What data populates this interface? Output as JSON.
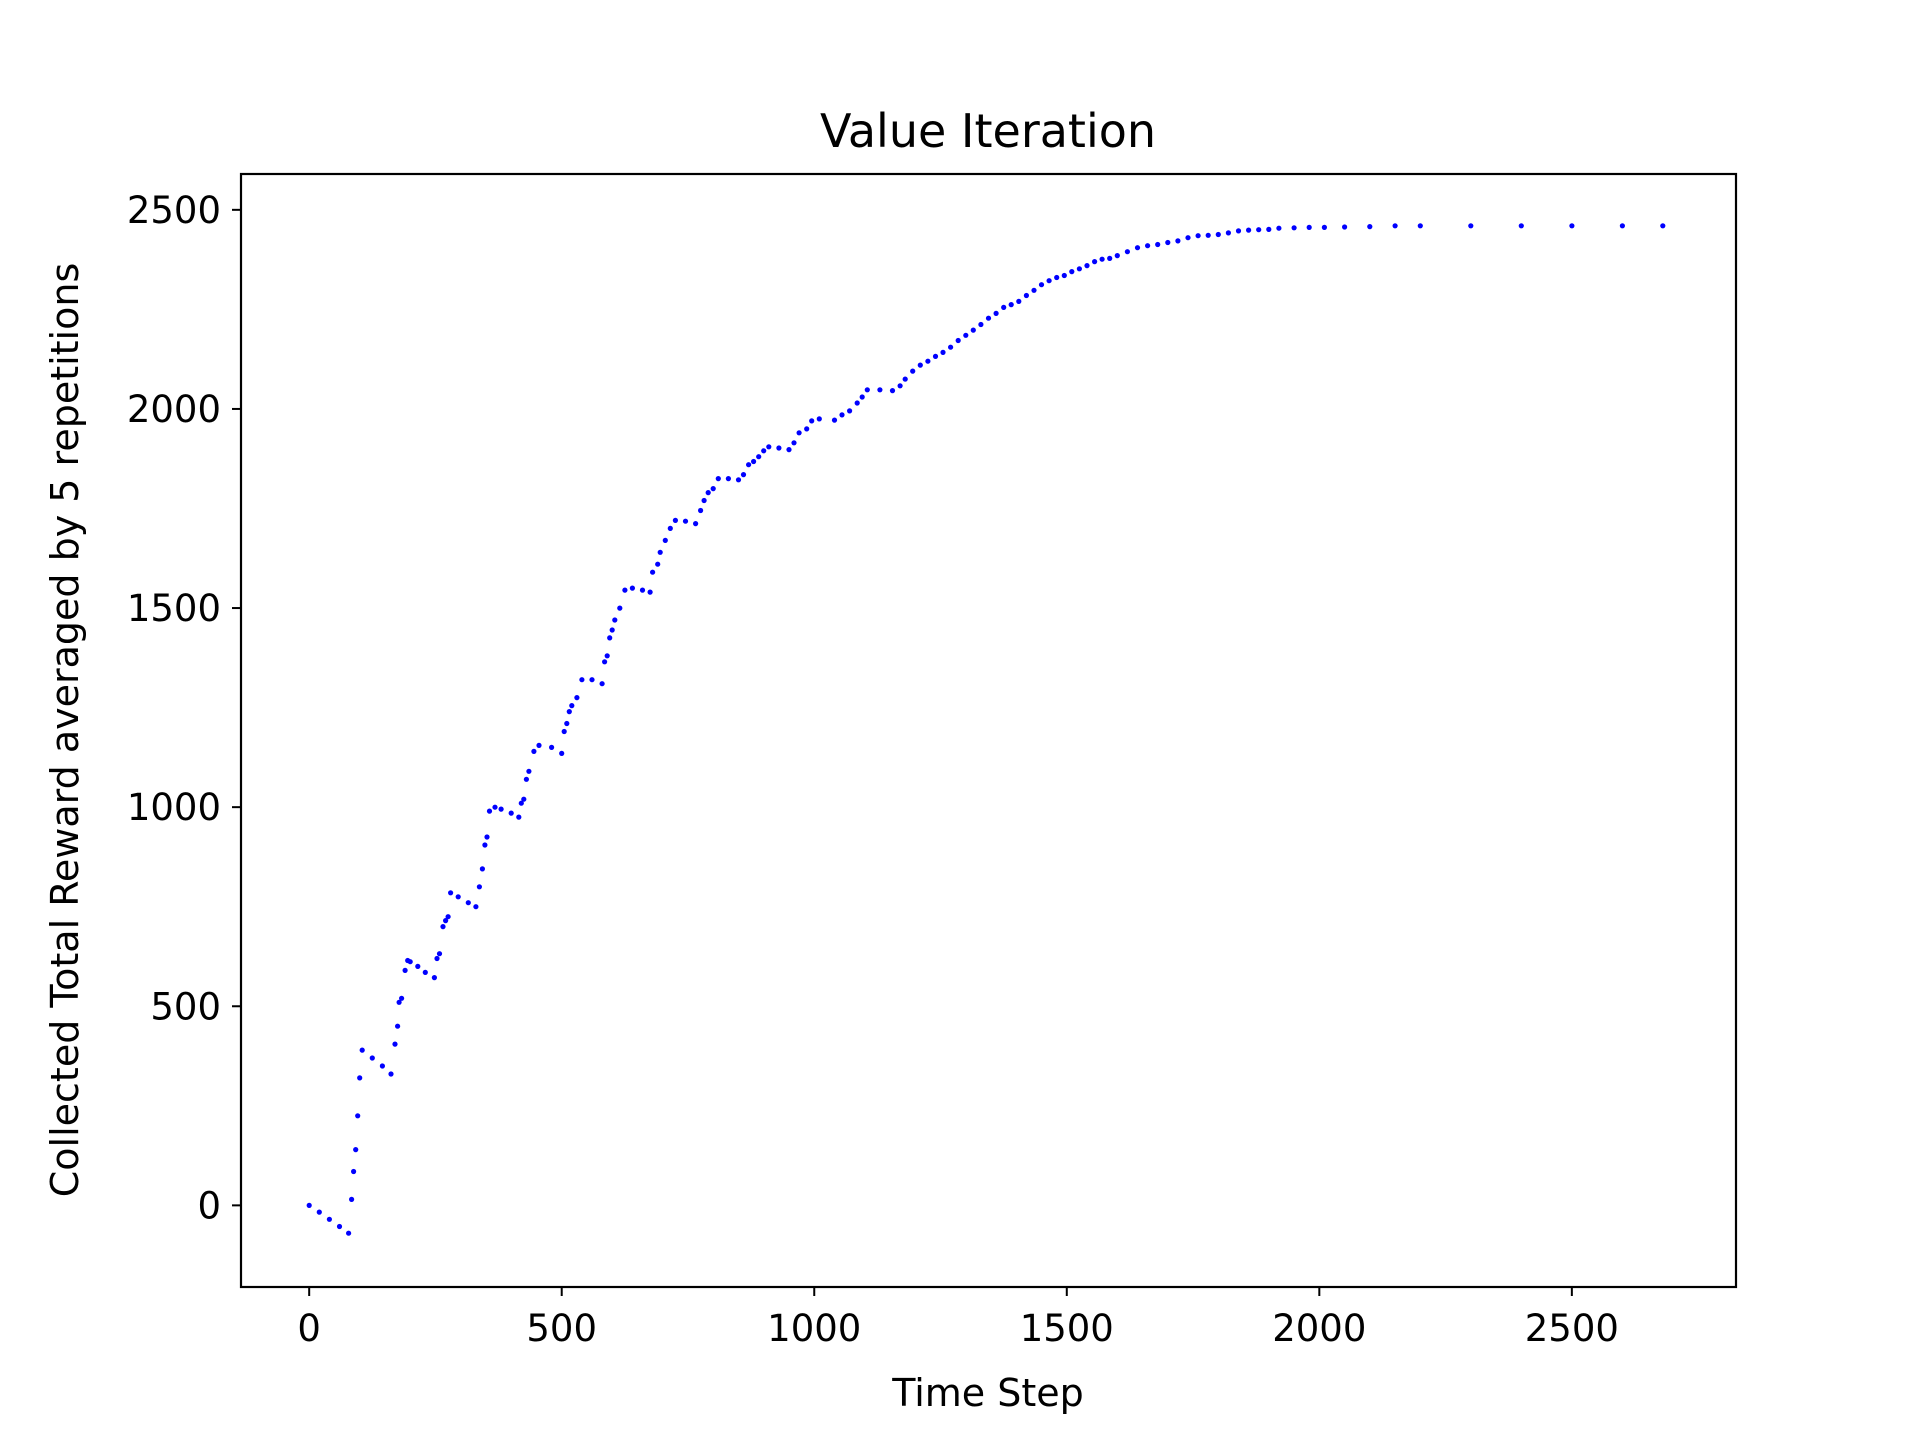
{
  "chart_data": {
    "type": "scatter",
    "title": "Value Iteration",
    "xlabel": "Time Step",
    "ylabel": "Collected Total Reward averaged by 5 repetitions",
    "xlim": [
      -135,
      2825
    ],
    "ylim": [
      -205,
      2590
    ],
    "xticks": [
      0,
      500,
      1000,
      1500,
      2000,
      2500
    ],
    "yticks": [
      0,
      500,
      1000,
      1500,
      2000,
      2500
    ],
    "grid": false,
    "legend": "none",
    "colors": {
      "series": "#0000ff",
      "axes": "#000000",
      "background": "#ffffff"
    },
    "series": [
      {
        "points": [
          [
            0,
            0
          ],
          [
            20,
            -17
          ],
          [
            40,
            -35
          ],
          [
            60,
            -53
          ],
          [
            78,
            -70
          ],
          [
            84,
            15
          ],
          [
            88,
            85
          ],
          [
            92,
            140
          ],
          [
            96,
            225
          ],
          [
            100,
            320
          ],
          [
            105,
            390
          ],
          [
            125,
            370
          ],
          [
            145,
            350
          ],
          [
            162,
            330
          ],
          [
            170,
            405
          ],
          [
            175,
            450
          ],
          [
            178,
            510
          ],
          [
            183,
            520
          ],
          [
            190,
            590
          ],
          [
            195,
            615
          ],
          [
            200,
            612
          ],
          [
            215,
            600
          ],
          [
            230,
            585
          ],
          [
            248,
            572
          ],
          [
            253,
            620
          ],
          [
            258,
            632
          ],
          [
            265,
            700
          ],
          [
            270,
            715
          ],
          [
            275,
            725
          ],
          [
            280,
            785
          ],
          [
            295,
            775
          ],
          [
            315,
            760
          ],
          [
            330,
            750
          ],
          [
            337,
            800
          ],
          [
            343,
            845
          ],
          [
            348,
            905
          ],
          [
            352,
            925
          ],
          [
            357,
            990
          ],
          [
            368,
            1000
          ],
          [
            380,
            995
          ],
          [
            400,
            985
          ],
          [
            415,
            975
          ],
          [
            420,
            1010
          ],
          [
            425,
            1020
          ],
          [
            430,
            1070
          ],
          [
            435,
            1090
          ],
          [
            445,
            1140
          ],
          [
            455,
            1155
          ],
          [
            480,
            1150
          ],
          [
            500,
            1135
          ],
          [
            505,
            1190
          ],
          [
            510,
            1210
          ],
          [
            515,
            1240
          ],
          [
            520,
            1255
          ],
          [
            530,
            1275
          ],
          [
            540,
            1320
          ],
          [
            560,
            1320
          ],
          [
            580,
            1310
          ],
          [
            585,
            1365
          ],
          [
            590,
            1380
          ],
          [
            595,
            1425
          ],
          [
            600,
            1445
          ],
          [
            605,
            1470
          ],
          [
            615,
            1500
          ],
          [
            625,
            1545
          ],
          [
            640,
            1550
          ],
          [
            660,
            1545
          ],
          [
            675,
            1540
          ],
          [
            680,
            1590
          ],
          [
            690,
            1610
          ],
          [
            695,
            1640
          ],
          [
            705,
            1670
          ],
          [
            715,
            1700
          ],
          [
            725,
            1720
          ],
          [
            745,
            1718
          ],
          [
            765,
            1712
          ],
          [
            775,
            1745
          ],
          [
            782,
            1770
          ],
          [
            790,
            1790
          ],
          [
            800,
            1800
          ],
          [
            810,
            1825
          ],
          [
            830,
            1825
          ],
          [
            850,
            1822
          ],
          [
            860,
            1835
          ],
          [
            870,
            1860
          ],
          [
            880,
            1868
          ],
          [
            890,
            1880
          ],
          [
            900,
            1895
          ],
          [
            910,
            1905
          ],
          [
            930,
            1902
          ],
          [
            950,
            1898
          ],
          [
            960,
            1915
          ],
          [
            970,
            1940
          ],
          [
            985,
            1950
          ],
          [
            995,
            1970
          ],
          [
            1010,
            1975
          ],
          [
            1040,
            1972
          ],
          [
            1055,
            1985
          ],
          [
            1070,
            1995
          ],
          [
            1085,
            2015
          ],
          [
            1095,
            2030
          ],
          [
            1105,
            2048
          ],
          [
            1130,
            2048
          ],
          [
            1155,
            2046
          ],
          [
            1170,
            2058
          ],
          [
            1180,
            2075
          ],
          [
            1195,
            2095
          ],
          [
            1210,
            2110
          ],
          [
            1225,
            2120
          ],
          [
            1240,
            2132
          ],
          [
            1255,
            2142
          ],
          [
            1270,
            2155
          ],
          [
            1285,
            2172
          ],
          [
            1300,
            2185
          ],
          [
            1315,
            2198
          ],
          [
            1330,
            2212
          ],
          [
            1345,
            2228
          ],
          [
            1360,
            2240
          ],
          [
            1375,
            2255
          ],
          [
            1390,
            2262
          ],
          [
            1405,
            2270
          ],
          [
            1420,
            2285
          ],
          [
            1435,
            2298
          ],
          [
            1450,
            2312
          ],
          [
            1465,
            2322
          ],
          [
            1480,
            2330
          ],
          [
            1495,
            2335
          ],
          [
            1510,
            2345
          ],
          [
            1525,
            2352
          ],
          [
            1540,
            2360
          ],
          [
            1555,
            2370
          ],
          [
            1570,
            2376
          ],
          [
            1585,
            2378
          ],
          [
            1600,
            2385
          ],
          [
            1620,
            2395
          ],
          [
            1640,
            2405
          ],
          [
            1660,
            2410
          ],
          [
            1680,
            2413
          ],
          [
            1700,
            2418
          ],
          [
            1720,
            2422
          ],
          [
            1740,
            2430
          ],
          [
            1760,
            2435
          ],
          [
            1780,
            2436
          ],
          [
            1800,
            2438
          ],
          [
            1820,
            2442
          ],
          [
            1840,
            2447
          ],
          [
            1860,
            2449
          ],
          [
            1880,
            2450
          ],
          [
            1900,
            2451
          ],
          [
            1920,
            2454
          ],
          [
            1950,
            2455
          ],
          [
            1980,
            2456
          ],
          [
            2010,
            2456
          ],
          [
            2050,
            2457
          ],
          [
            2100,
            2458
          ],
          [
            2150,
            2460
          ],
          [
            2200,
            2460
          ],
          [
            2300,
            2460
          ],
          [
            2400,
            2460
          ],
          [
            2500,
            2460
          ],
          [
            2600,
            2460
          ],
          [
            2680,
            2460
          ]
        ]
      }
    ]
  }
}
